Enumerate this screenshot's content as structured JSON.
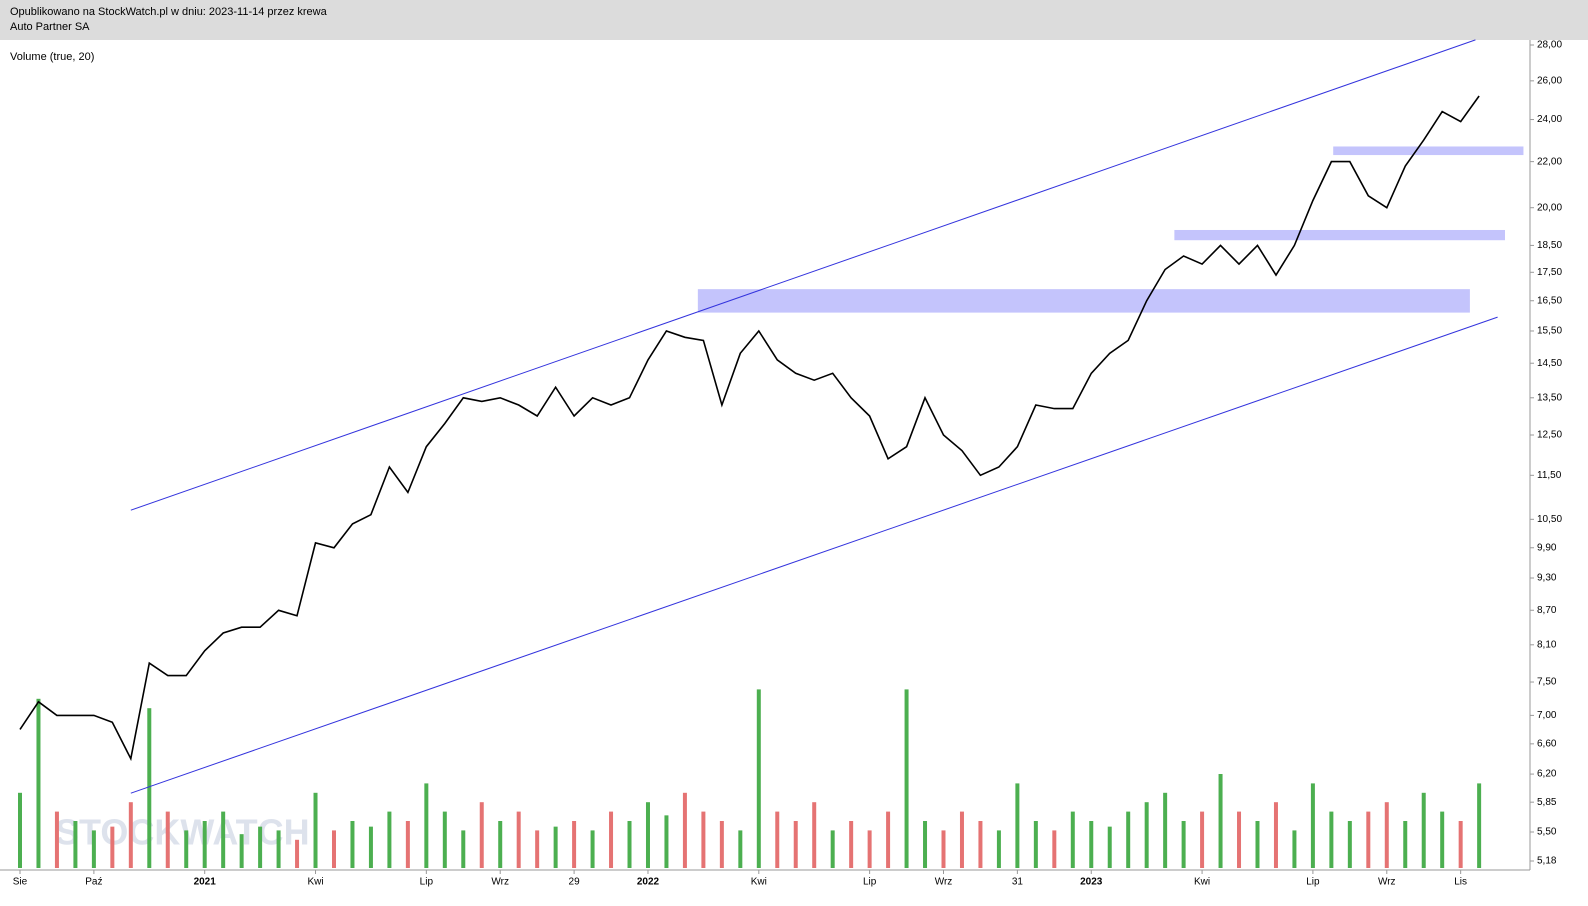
{
  "chart_data": {
    "type": "line",
    "header": "Opublikowano na StockWatch.pl w dniu: 2023-11-14 przez krewa",
    "title": "Auto Partner SA",
    "indicator": "Volume (true, 20)",
    "watermark": "STOCKWATCH",
    "categories": [
      "Sie",
      null,
      null,
      null,
      "Paź",
      null,
      null,
      null,
      null,
      null,
      "2021",
      null,
      null,
      null,
      null,
      null,
      "Kwi",
      null,
      null,
      null,
      null,
      null,
      "Lip",
      null,
      null,
      null,
      "Wrz",
      null,
      null,
      null,
      "29",
      null,
      null,
      null,
      "2022",
      null,
      null,
      null,
      null,
      null,
      "Kwi",
      null,
      null,
      null,
      null,
      null,
      "Lip",
      null,
      null,
      null,
      "Wrz",
      null,
      null,
      null,
      "31",
      null,
      null,
      null,
      "2023",
      null,
      null,
      null,
      null,
      null,
      "Kwi",
      null,
      null,
      null,
      null,
      null,
      "Lip",
      null,
      null,
      null,
      "Wrz",
      null,
      null,
      null,
      "Lis",
      null
    ],
    "values": [
      6.8,
      7.2,
      7.0,
      7.0,
      7.0,
      6.9,
      6.4,
      7.8,
      7.6,
      7.6,
      8.0,
      8.3,
      8.4,
      8.4,
      8.7,
      8.6,
      10.0,
      9.9,
      10.4,
      10.6,
      11.7,
      11.1,
      12.2,
      12.8,
      13.5,
      13.4,
      13.5,
      13.3,
      13.0,
      13.8,
      13.0,
      13.5,
      13.3,
      13.5,
      14.6,
      15.5,
      15.3,
      15.2,
      13.3,
      14.8,
      15.5,
      14.6,
      14.2,
      14.0,
      14.2,
      13.5,
      13.0,
      11.9,
      12.2,
      13.5,
      12.5,
      12.1,
      11.5,
      11.7,
      12.2,
      13.3,
      13.2,
      13.2,
      14.2,
      14.8,
      15.2,
      16.5,
      17.6,
      18.1,
      17.8,
      18.5,
      17.8,
      18.5,
      17.4,
      18.5,
      20.3,
      22.0,
      22.0,
      20.5,
      20.0,
      21.8,
      23.0,
      24.4,
      23.9,
      25.2
    ],
    "color": "#000000",
    "volume": [
      40,
      90,
      30,
      25,
      20,
      22,
      35,
      85,
      30,
      20,
      25,
      30,
      18,
      22,
      20,
      15,
      40,
      20,
      25,
      22,
      30,
      25,
      45,
      30,
      20,
      35,
      25,
      30,
      20,
      22,
      25,
      20,
      30,
      25,
      35,
      28,
      40,
      30,
      25,
      20,
      95,
      30,
      25,
      35,
      20,
      25,
      20,
      30,
      95,
      25,
      20,
      30,
      25,
      20,
      45,
      25,
      20,
      30,
      25,
      22,
      30,
      35,
      40,
      25,
      30,
      50,
      30,
      25,
      35,
      20,
      45,
      30,
      25,
      30,
      35,
      25,
      40,
      30,
      25,
      45
    ],
    "volume_ylim": [
      0,
      100
    ],
    "up_color": "#4caf50",
    "down_color": "#e57373",
    "log_scale": true,
    "ylim": [
      5.18,
      28
    ],
    "yticks": [
      {
        "value": 28,
        "label": "28,00"
      },
      {
        "value": 26,
        "label": "26,00"
      },
      {
        "value": 24,
        "label": "24,00"
      },
      {
        "value": 22,
        "label": "22,00"
      },
      {
        "value": 20,
        "label": "20,00"
      },
      {
        "value": 18.5,
        "label": "18,50"
      },
      {
        "value": 17.5,
        "label": "17,50"
      },
      {
        "value": 16.5,
        "label": "16,50"
      },
      {
        "value": 15.5,
        "label": "15,50"
      },
      {
        "value": 14.5,
        "label": "14,50"
      },
      {
        "value": 13.5,
        "label": "13,50"
      },
      {
        "value": 12.5,
        "label": "12,50"
      },
      {
        "value": 11.5,
        "label": "11,50"
      },
      {
        "value": 10.5,
        "label": "10,50"
      },
      {
        "value": 9.9,
        "label": "9,90"
      },
      {
        "value": 9.3,
        "label": "9,30"
      },
      {
        "value": 8.7,
        "label": "8,70"
      },
      {
        "value": 8.1,
        "label": "8,10"
      },
      {
        "value": 7.5,
        "label": "7,50"
      },
      {
        "value": 7,
        "label": "7,00"
      },
      {
        "value": 6.6,
        "label": "6,60"
      },
      {
        "value": 6.2,
        "label": "6,20"
      },
      {
        "value": 5.85,
        "label": "5,85"
      },
      {
        "value": 5.5,
        "label": "5,50"
      },
      {
        "value": 5.18,
        "label": "5,18"
      }
    ],
    "channel": [
      {
        "x": [
          6,
          78.8
        ],
        "y": [
          10.7,
          28.3
        ]
      },
      {
        "x": [
          6,
          80
        ],
        "y": [
          5.96,
          15.95
        ]
      }
    ],
    "channel_color": "#3333dd",
    "zones": [
      {
        "x": [
          36.7,
          78.5
        ],
        "y": [
          16.1,
          16.9
        ]
      },
      {
        "x": [
          62.5,
          80.4
        ],
        "y": [
          18.7,
          19.1
        ]
      },
      {
        "x": [
          71.1,
          81.4
        ],
        "y": [
          22.3,
          22.7
        ]
      }
    ],
    "zone_color": "#c4c4fc"
  }
}
